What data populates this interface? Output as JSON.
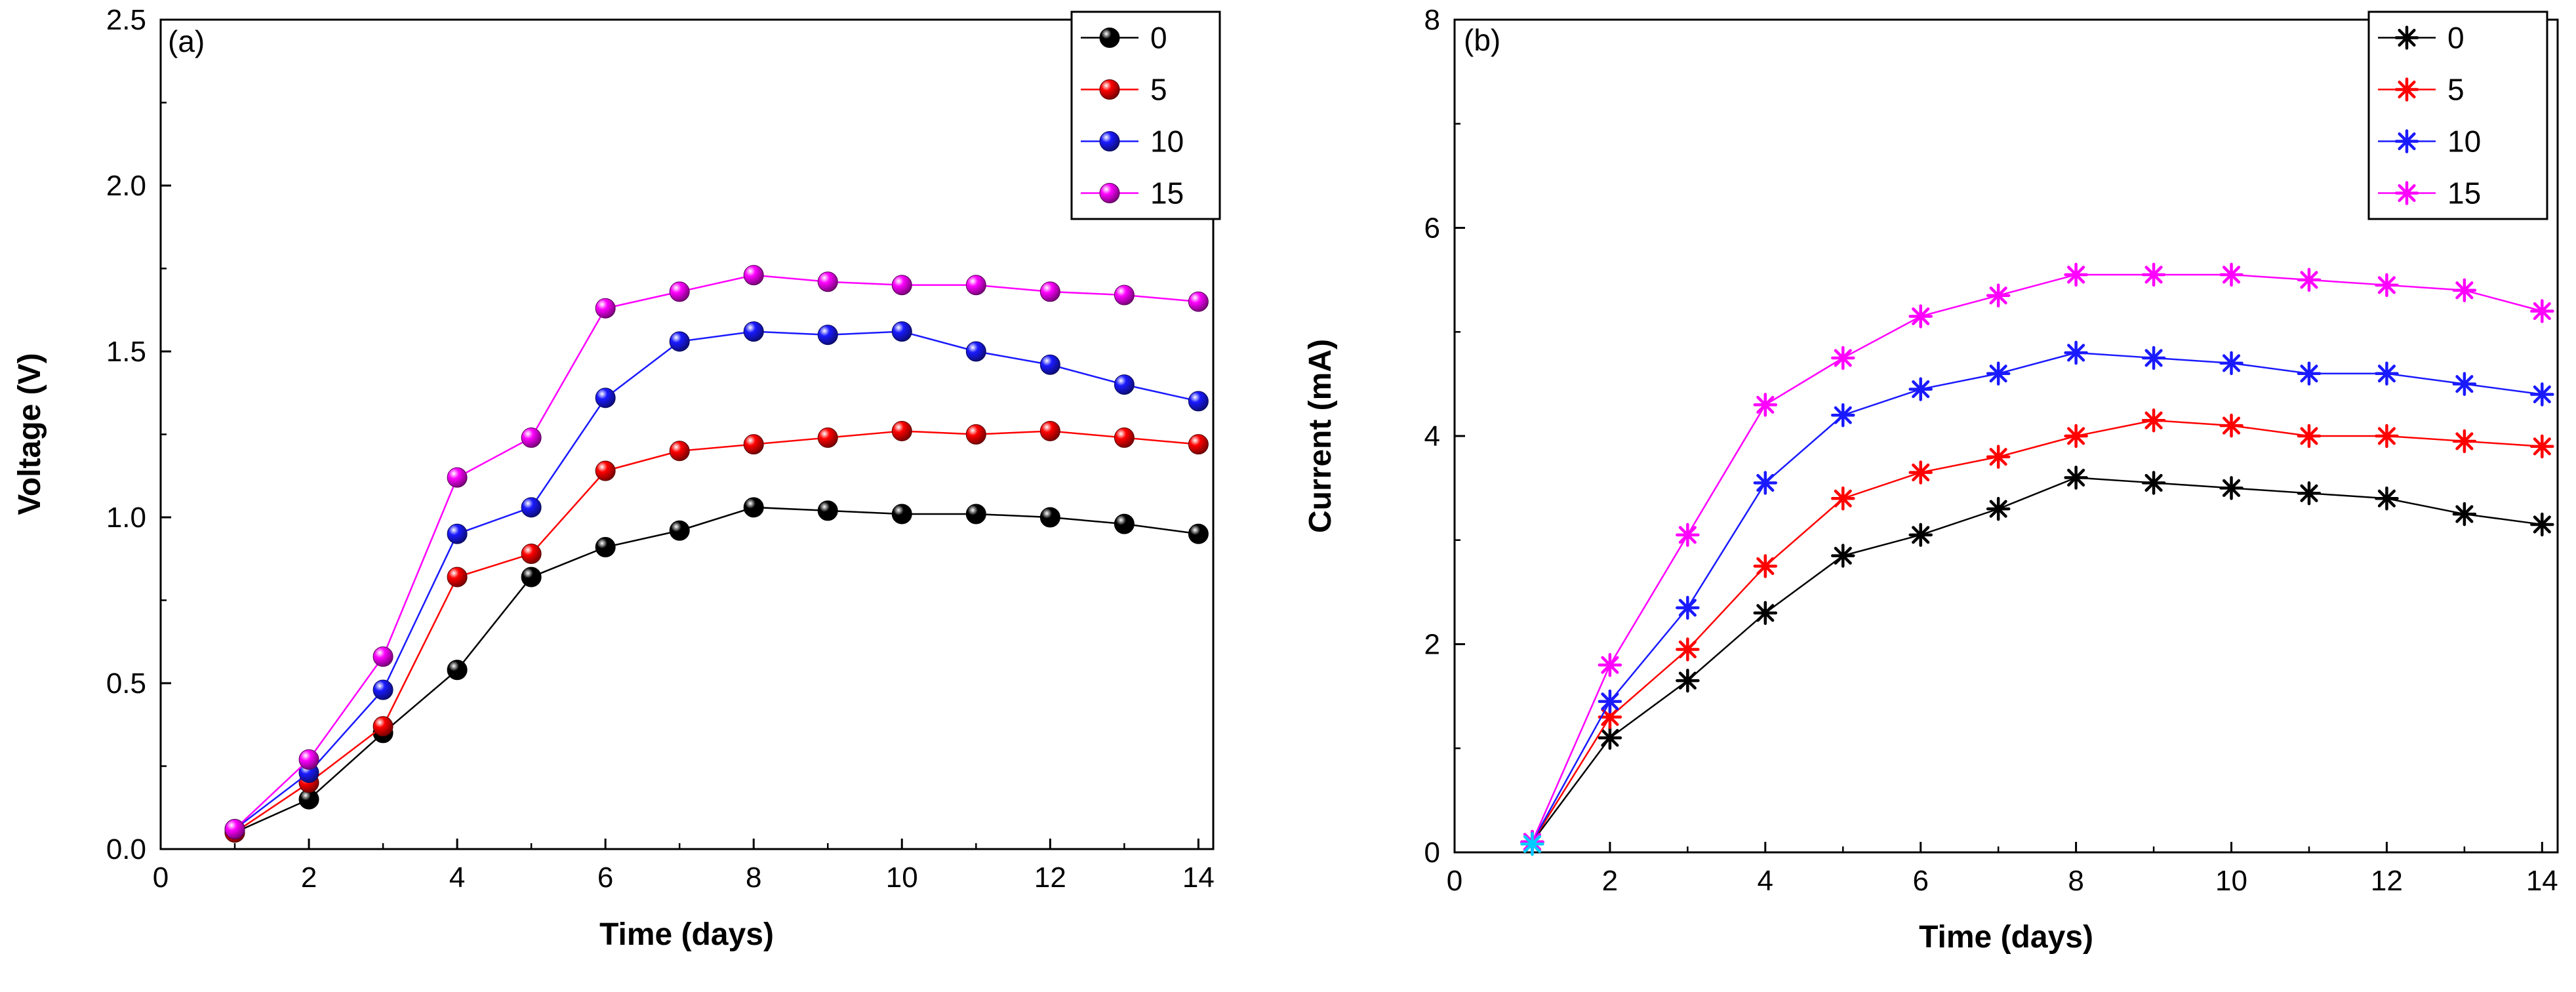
{
  "figure": {
    "background": "#ffffff"
  },
  "chart_data": [
    {
      "type": "line",
      "panel_label": "(a)",
      "xlabel": "Time (days)",
      "ylabel": "Voltage (V)",
      "xlim": [
        0,
        14.2
      ],
      "ylim": [
        0,
        2.5
      ],
      "xticks": [
        0,
        2,
        4,
        6,
        8,
        10,
        12,
        14
      ],
      "xtick_labels": [
        "0",
        "2",
        "4",
        "6",
        "8",
        "10",
        "12",
        "14"
      ],
      "yticks": [
        0,
        0.5,
        1.0,
        1.5,
        2.0,
        2.5
      ],
      "ytick_labels": [
        "0.0",
        "0.5",
        "1.0",
        "1.5",
        "2.0",
        "2.5"
      ],
      "x_minor_ticks": [
        1,
        3,
        5,
        7,
        9,
        11,
        13
      ],
      "y_minor_ticks": [
        0.25,
        0.75,
        1.25,
        1.75,
        2.25
      ],
      "grid": false,
      "marker": "ball",
      "legend": {
        "position": "top-right",
        "entries": [
          "0",
          "5",
          "10",
          "15"
        ]
      },
      "x": [
        1,
        2,
        3,
        4,
        5,
        6,
        7,
        8,
        9,
        10,
        11,
        12,
        13,
        14
      ],
      "series": [
        {
          "name": "0",
          "color": "#000000",
          "values": [
            0.05,
            0.15,
            0.35,
            0.54,
            0.82,
            0.91,
            0.96,
            1.03,
            1.02,
            1.01,
            1.01,
            1.0,
            0.98,
            0.95
          ]
        },
        {
          "name": "5",
          "color": "#fe0000",
          "values": [
            0.05,
            0.2,
            0.37,
            0.82,
            0.89,
            1.14,
            1.2,
            1.22,
            1.24,
            1.26,
            1.25,
            1.26,
            1.24,
            1.22
          ]
        },
        {
          "name": "10",
          "color": "#1a1aff",
          "values": [
            0.06,
            0.23,
            0.48,
            0.95,
            1.03,
            1.36,
            1.53,
            1.56,
            1.55,
            1.56,
            1.5,
            1.46,
            1.4,
            1.35
          ]
        },
        {
          "name": "15",
          "color": "#ff00ff",
          "values": [
            0.06,
            0.27,
            0.58,
            1.12,
            1.24,
            1.63,
            1.68,
            1.73,
            1.71,
            1.7,
            1.7,
            1.68,
            1.67,
            1.65
          ]
        }
      ]
    },
    {
      "type": "line",
      "panel_label": "(b)",
      "xlabel": "Time (days)",
      "ylabel": "Current (mA)",
      "xlim": [
        0,
        14.2
      ],
      "ylim": [
        0,
        8
      ],
      "xticks": [
        0,
        2,
        4,
        6,
        8,
        10,
        12,
        14
      ],
      "xtick_labels": [
        "0",
        "2",
        "4",
        "6",
        "8",
        "10",
        "12",
        "14"
      ],
      "yticks": [
        0,
        2,
        4,
        6,
        8
      ],
      "ytick_labels": [
        "0",
        "2",
        "4",
        "6",
        "8"
      ],
      "x_minor_ticks": [
        1,
        3,
        5,
        7,
        9,
        11,
        13
      ],
      "y_minor_ticks": [
        1,
        3,
        5,
        7
      ],
      "grid": false,
      "marker": "asterisk",
      "legend": {
        "position": "top-right",
        "entries": [
          "0",
          "5",
          "10",
          "15"
        ]
      },
      "x": [
        1,
        2,
        3,
        4,
        5,
        6,
        7,
        8,
        9,
        10,
        11,
        12,
        13,
        14
      ],
      "series": [
        {
          "name": "0",
          "color": "#000000",
          "values": [
            0.1,
            1.1,
            1.65,
            2.3,
            2.85,
            3.05,
            3.3,
            3.6,
            3.55,
            3.5,
            3.45,
            3.4,
            3.25,
            3.15
          ]
        },
        {
          "name": "5",
          "color": "#fe0000",
          "values": [
            0.1,
            1.3,
            1.95,
            2.75,
            3.4,
            3.65,
            3.8,
            4.0,
            4.15,
            4.1,
            4.0,
            4.0,
            3.95,
            3.9
          ]
        },
        {
          "name": "10",
          "color": "#1a1aff",
          "values": [
            0.1,
            1.45,
            2.35,
            3.55,
            4.2,
            4.45,
            4.6,
            4.8,
            4.75,
            4.7,
            4.6,
            4.6,
            4.5,
            4.4
          ]
        },
        {
          "name": "15",
          "color": "#ff00ff",
          "values": [
            0.1,
            1.8,
            3.05,
            4.3,
            4.75,
            5.15,
            5.35,
            5.55,
            5.55,
            5.55,
            5.5,
            5.45,
            5.4,
            5.2
          ]
        }
      ],
      "extra_point": {
        "x": 1,
        "y": 0.08,
        "color": "#00ccff",
        "marker": "asterisk"
      }
    }
  ]
}
